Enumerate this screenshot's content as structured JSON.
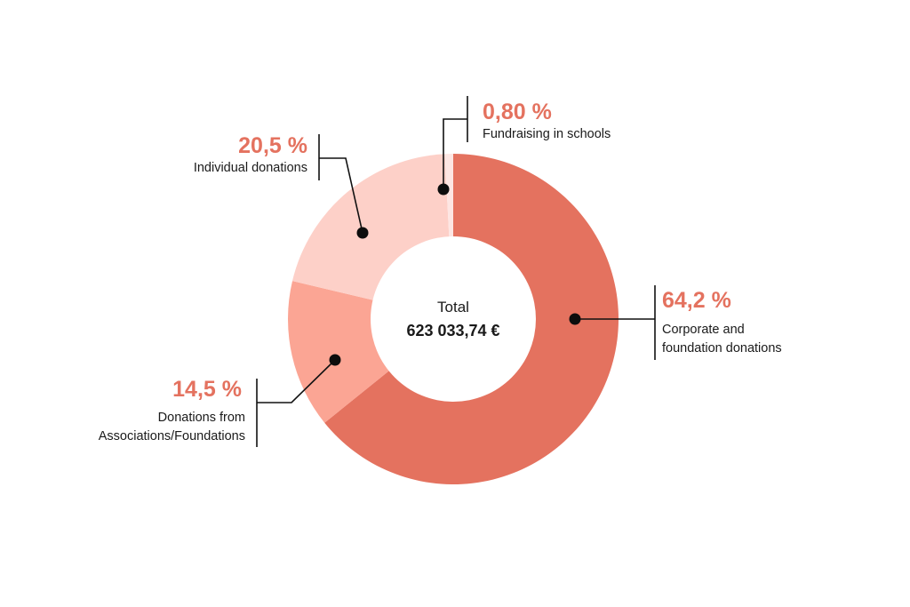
{
  "chart_data": {
    "type": "pie",
    "variant": "donut",
    "center": {
      "title": "Total",
      "value": "623 033,74 €"
    },
    "series": [
      {
        "name": "Corporate and foundation donations",
        "label_lines": [
          "Corporate and",
          "foundation donations"
        ],
        "value": 64.2,
        "percent_label": "64,2 %",
        "color": "#e4725f"
      },
      {
        "name": "Donations from Associations/Foundations",
        "label_lines": [
          "Donations from",
          "Associations/Foundations"
        ],
        "value": 14.5,
        "percent_label": "14,5 %",
        "color": "#fba594"
      },
      {
        "name": "Individual donations",
        "label_lines": [
          "Individual donations"
        ],
        "value": 20.5,
        "percent_label": "20,5 %",
        "color": "#fdd0c8"
      },
      {
        "name": "Fundraising in schools",
        "label_lines": [
          "Fundraising in schools"
        ],
        "value": 0.8,
        "percent_label": "0,80 %",
        "color": "#fde6e3"
      }
    ],
    "percent_color": "#e4725f"
  }
}
